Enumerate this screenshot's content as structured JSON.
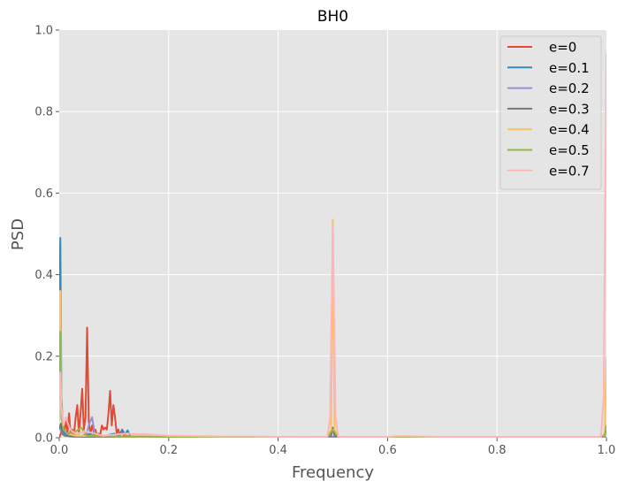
{
  "chart_data": {
    "type": "line",
    "title": "BH0",
    "xlabel": "Frequency",
    "ylabel": "PSD",
    "xlim": [
      0,
      1
    ],
    "ylim": [
      0,
      1
    ],
    "xticks": [
      "0.0",
      "0.2",
      "0.4",
      "0.6",
      "0.8",
      "1.0"
    ],
    "yticks": [
      "0.0",
      "0.2",
      "0.4",
      "0.6",
      "0.8",
      "1.0"
    ],
    "grid": true,
    "legend_position": "top-right",
    "series": [
      {
        "name": "e=0",
        "color": "#E24A33",
        "x": [
          0.0,
          0.003,
          0.006,
          0.009,
          0.012,
          0.015,
          0.018,
          0.021,
          0.024,
          0.027,
          0.03,
          0.033,
          0.036,
          0.039,
          0.042,
          0.045,
          0.048,
          0.051,
          0.054,
          0.057,
          0.06,
          0.063,
          0.066,
          0.069,
          0.072,
          0.075,
          0.078,
          0.081,
          0.084,
          0.087,
          0.09,
          0.093,
          0.096,
          0.099,
          0.102,
          0.105,
          0.108,
          0.111,
          0.114,
          0.117,
          0.12,
          0.13,
          0.15,
          0.18,
          0.25,
          0.35,
          0.45,
          0.5,
          0.55,
          0.7,
          0.85,
          1.0
        ],
        "y": [
          0.0,
          0.01,
          0.03,
          0.015,
          0.04,
          0.01,
          0.06,
          0.005,
          0.02,
          0.008,
          0.05,
          0.08,
          0.01,
          0.06,
          0.12,
          0.02,
          0.05,
          0.27,
          0.04,
          0.01,
          0.03,
          0.015,
          0.02,
          0.005,
          0.01,
          0.008,
          0.03,
          0.02,
          0.025,
          0.02,
          0.06,
          0.115,
          0.03,
          0.08,
          0.05,
          0.01,
          0.02,
          0.005,
          0.015,
          0.008,
          0.005,
          0.003,
          0.003,
          0.002,
          0.002,
          0.001,
          0.001,
          0.002,
          0.001,
          0.001,
          0.001,
          0.001
        ]
      },
      {
        "name": "e=0.1",
        "color": "#348ABD",
        "x": [
          0.0,
          0.002,
          0.004,
          0.007,
          0.01,
          0.02,
          0.04,
          0.06,
          0.08,
          0.1,
          0.11,
          0.115,
          0.12,
          0.125,
          0.13,
          0.14,
          0.16,
          0.2,
          0.3,
          0.5,
          0.7,
          1.0
        ],
        "y": [
          0.36,
          0.49,
          0.1,
          0.02,
          0.01,
          0.005,
          0.004,
          0.01,
          0.003,
          0.01,
          0.005,
          0.02,
          0.008,
          0.018,
          0.003,
          0.002,
          0.001,
          0.001,
          0.001,
          0.001,
          0.001,
          0.001
        ]
      },
      {
        "name": "e=0.2",
        "color": "#988ED5",
        "x": [
          0.0,
          0.005,
          0.01,
          0.02,
          0.03,
          0.04,
          0.05,
          0.055,
          0.06,
          0.065,
          0.07,
          0.08,
          0.1,
          0.15,
          0.3,
          0.5,
          0.7,
          1.0
        ],
        "y": [
          0.03,
          0.01,
          0.005,
          0.004,
          0.006,
          0.003,
          0.01,
          0.035,
          0.05,
          0.01,
          0.005,
          0.003,
          0.002,
          0.001,
          0.001,
          0.001,
          0.001,
          0.001
        ]
      },
      {
        "name": "e=0.3",
        "color": "#777777",
        "x": [
          0.0,
          0.003,
          0.006,
          0.01,
          0.02,
          0.05,
          0.1,
          0.3,
          0.49,
          0.497,
          0.5,
          0.503,
          0.51,
          0.7,
          0.99,
          0.997,
          1.0
        ],
        "y": [
          0.02,
          0.035,
          0.01,
          0.005,
          0.003,
          0.002,
          0.001,
          0.001,
          0.001,
          0.005,
          0.025,
          0.005,
          0.001,
          0.001,
          0.001,
          0.005,
          0.02
        ]
      },
      {
        "name": "e=0.4",
        "color": "#FBC15E",
        "x": [
          0.0,
          0.002,
          0.004,
          0.008,
          0.015,
          0.03,
          0.06,
          0.1,
          0.2,
          0.3,
          0.49,
          0.497,
          0.5,
          0.503,
          0.51,
          0.7,
          0.99,
          0.997,
          1.0
        ],
        "y": [
          0.15,
          0.36,
          0.08,
          0.02,
          0.01,
          0.005,
          0.004,
          0.003,
          0.002,
          0.002,
          0.002,
          0.02,
          0.535,
          0.02,
          0.002,
          0.002,
          0.002,
          0.01,
          0.2
        ]
      },
      {
        "name": "e=0.5",
        "color": "#8EBA42",
        "x": [
          0.0,
          0.002,
          0.004,
          0.008,
          0.015,
          0.03,
          0.04,
          0.05,
          0.1,
          0.2,
          0.3,
          0.49,
          0.5,
          0.51,
          0.7,
          0.99,
          0.997,
          1.0
        ],
        "y": [
          0.16,
          0.26,
          0.05,
          0.02,
          0.01,
          0.015,
          0.025,
          0.005,
          0.003,
          0.002,
          0.002,
          0.001,
          0.02,
          0.001,
          0.001,
          0.001,
          0.005,
          0.03
        ]
      },
      {
        "name": "e=0.7",
        "color": "#FFB5B8",
        "x": [
          0.0,
          0.002,
          0.004,
          0.008,
          0.012,
          0.02,
          0.03,
          0.05,
          0.08,
          0.12,
          0.16,
          0.2,
          0.25,
          0.3,
          0.35,
          0.4,
          0.45,
          0.49,
          0.495,
          0.5,
          0.505,
          0.51,
          0.55,
          0.6,
          0.62,
          0.7,
          0.8,
          0.9,
          0.99,
          0.995,
          1.0
        ],
        "y": [
          0.04,
          0.16,
          0.07,
          0.03,
          0.05,
          0.02,
          0.01,
          0.015,
          0.005,
          0.01,
          0.008,
          0.005,
          0.004,
          0.003,
          0.003,
          0.002,
          0.002,
          0.002,
          0.05,
          0.52,
          0.05,
          0.002,
          0.002,
          0.002,
          0.004,
          0.002,
          0.002,
          0.002,
          0.002,
          0.1,
          0.945
        ]
      }
    ]
  }
}
